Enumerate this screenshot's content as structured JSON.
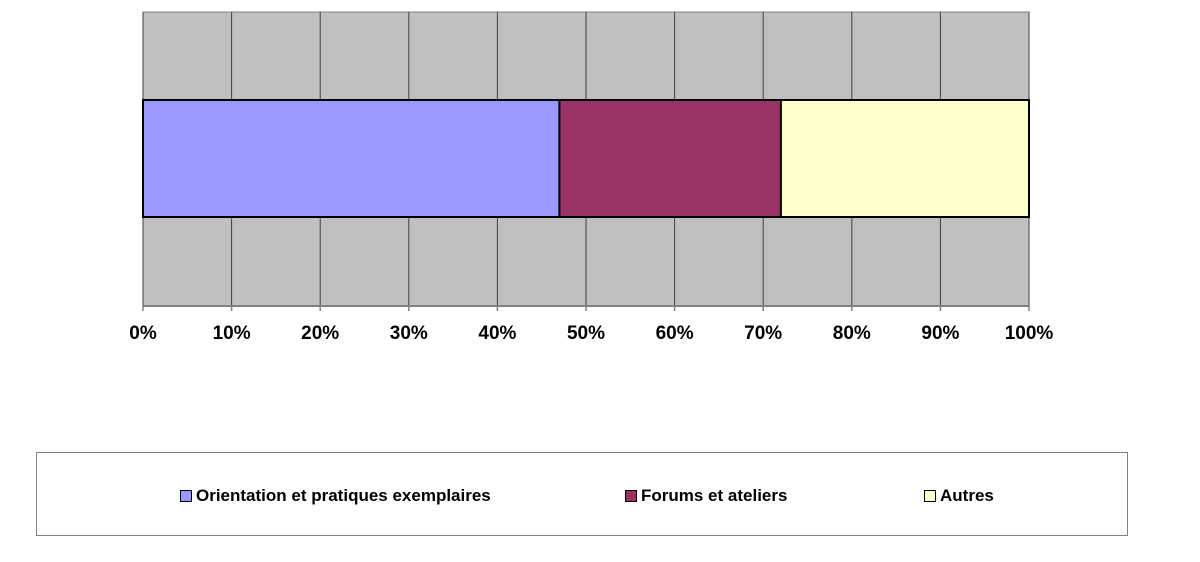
{
  "chart_data": {
    "type": "bar",
    "orientation": "horizontal",
    "stacked": "100%",
    "categories": [
      ""
    ],
    "series": [
      {
        "name": "Orientation et pratiques exemplaires",
        "values": [
          47
        ],
        "color": "#9999ff"
      },
      {
        "name": "Forums et ateliers",
        "values": [
          25
        ],
        "color": "#993366"
      },
      {
        "name": "Autres",
        "values": [
          28
        ],
        "color": "#ffffcc"
      }
    ],
    "xlim": [
      0,
      100
    ],
    "x_ticks": [
      "0%",
      "10%",
      "20%",
      "30%",
      "40%",
      "50%",
      "60%",
      "70%",
      "80%",
      "90%",
      "100%"
    ],
    "grid": true,
    "plot_background": "#c0c0c0",
    "legend_position": "bottom"
  }
}
